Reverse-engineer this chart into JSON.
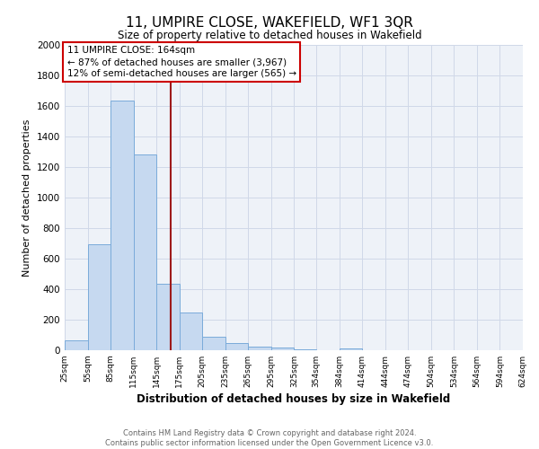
{
  "title": "11, UMPIRE CLOSE, WAKEFIELD, WF1 3QR",
  "subtitle": "Size of property relative to detached houses in Wakefield",
  "xlabel": "Distribution of detached houses by size in Wakefield",
  "ylabel": "Number of detached properties",
  "bar_color": "#c6d9f0",
  "bar_edge_color": "#7aabda",
  "annotation_box_color": "#ffffff",
  "annotation_box_edge": "#cc0000",
  "vline_color": "#9e1a1a",
  "vline_x": 164,
  "annotation_title": "11 UMPIRE CLOSE: 164sqm",
  "annotation_line1": "← 87% of detached houses are smaller (3,967)",
  "annotation_line2": "12% of semi-detached houses are larger (565) →",
  "footer_line1": "Contains HM Land Registry data © Crown copyright and database right 2024.",
  "footer_line2": "Contains public sector information licensed under the Open Government Licence v3.0.",
  "ylim": [
    0,
    2000
  ],
  "bin_edges": [
    25,
    55,
    85,
    115,
    145,
    175,
    205,
    235,
    265,
    295,
    325,
    354,
    384,
    414,
    444,
    474,
    504,
    534,
    564,
    594,
    624
  ],
  "bin_counts": [
    65,
    695,
    1635,
    1285,
    435,
    250,
    90,
    50,
    25,
    20,
    5,
    0,
    10,
    0,
    0,
    0,
    0,
    0,
    0,
    0
  ],
  "tick_labels": [
    "25sqm",
    "55sqm",
    "85sqm",
    "115sqm",
    "145sqm",
    "175sqm",
    "205sqm",
    "235sqm",
    "265sqm",
    "295sqm",
    "325sqm",
    "354sqm",
    "384sqm",
    "414sqm",
    "444sqm",
    "474sqm",
    "504sqm",
    "534sqm",
    "564sqm",
    "594sqm",
    "624sqm"
  ],
  "background_color": "#ffffff",
  "grid_color": "#d0d8e8",
  "plot_bg_color": "#eef2f8"
}
